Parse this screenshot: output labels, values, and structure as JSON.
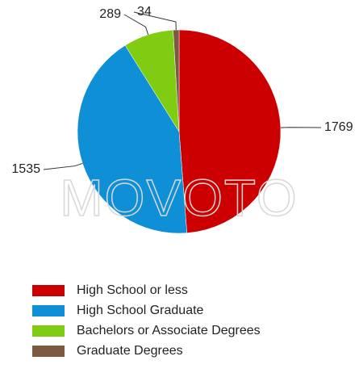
{
  "chart_data": {
    "type": "pie",
    "watermark": "MOVOTO",
    "categories": [
      "High School or less",
      "High School Graduate",
      "Bachelors or Associate Degrees",
      "Graduate Degrees"
    ],
    "values": [
      1769,
      1535,
      289,
      34
    ],
    "colors": [
      "#cc0000",
      "#0e8fd6",
      "#7fcc12",
      "#7b5a41"
    ]
  }
}
